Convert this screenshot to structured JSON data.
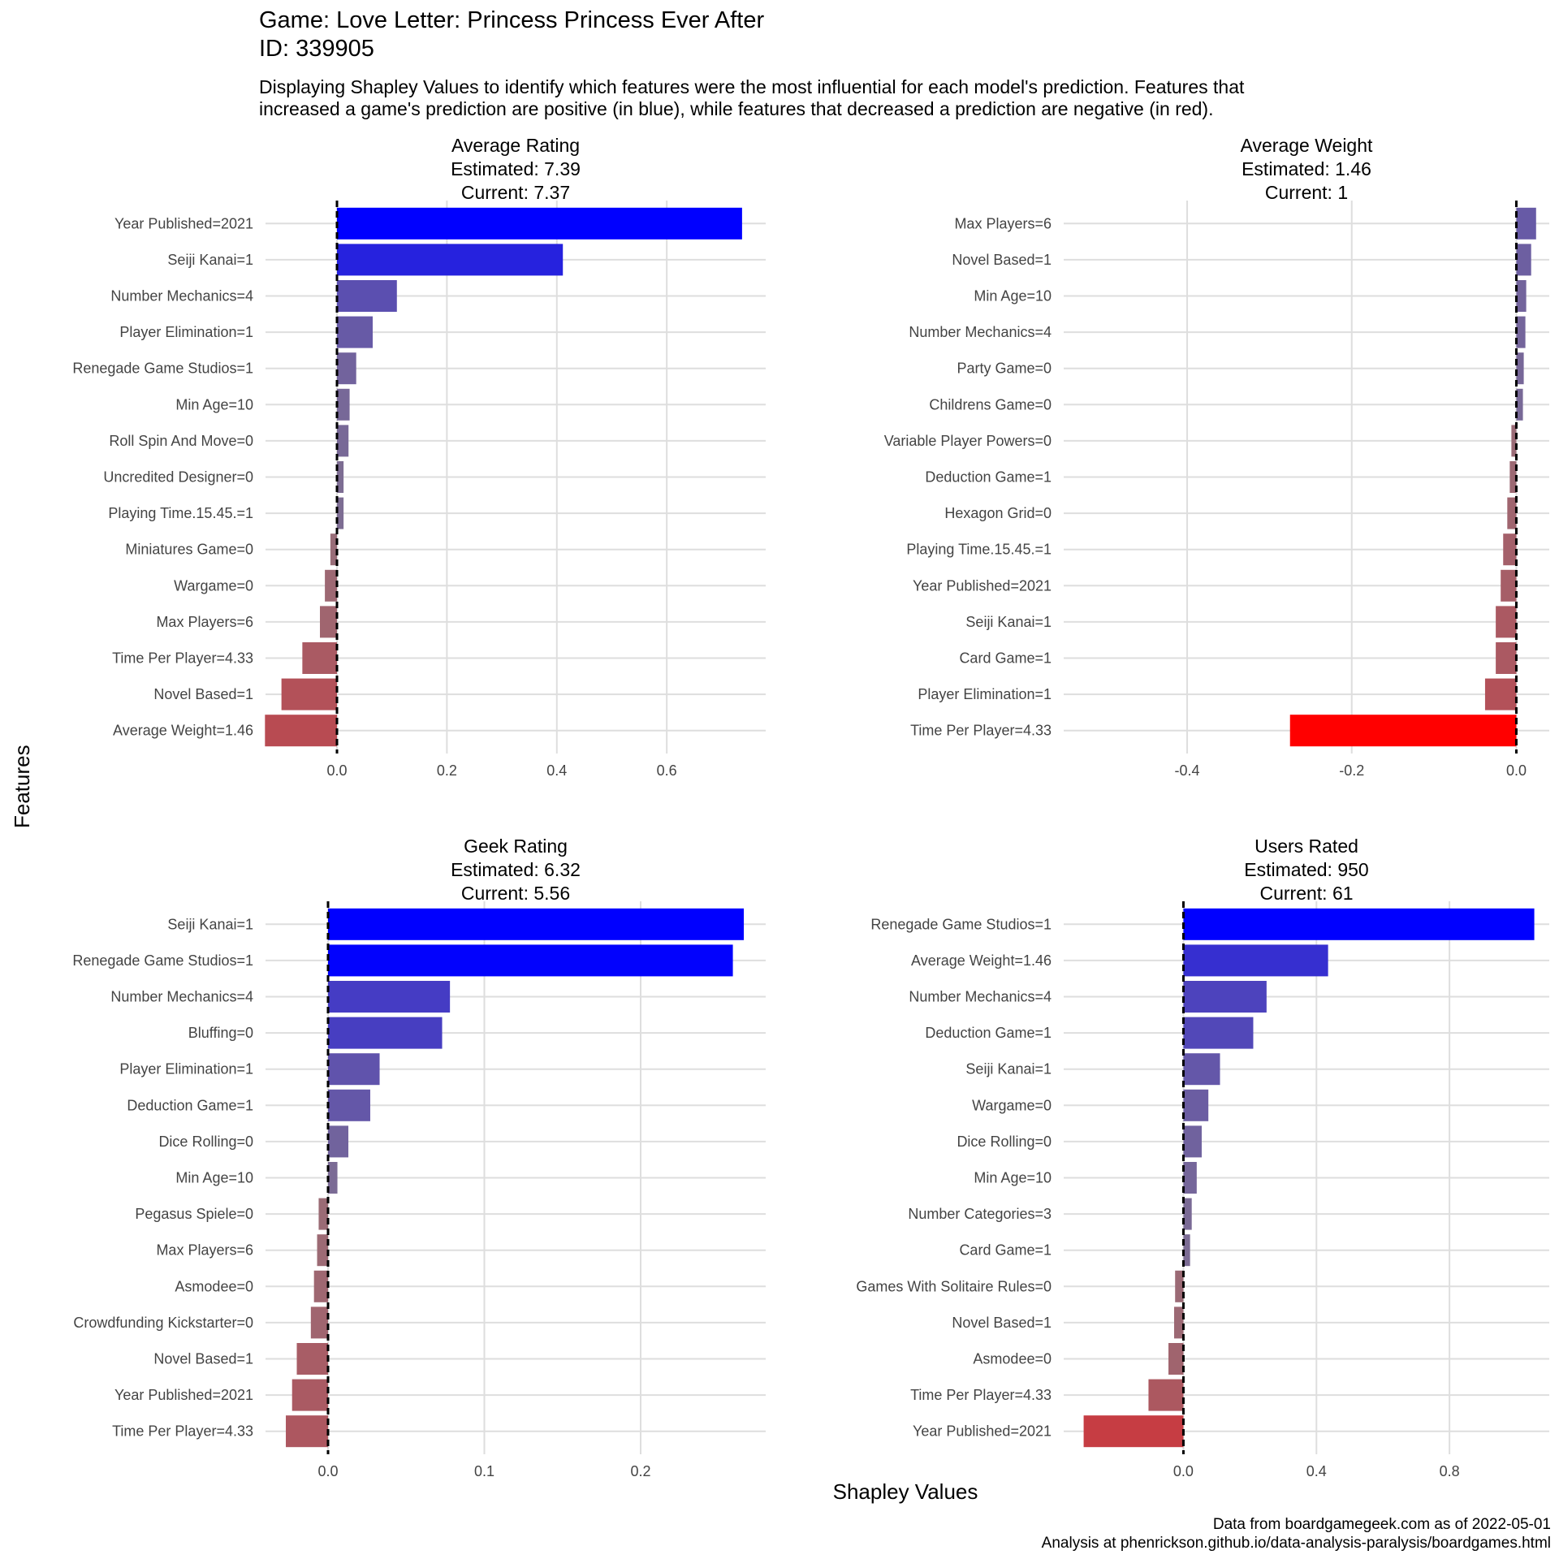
{
  "title": {
    "line1": "Game: Love Letter: Princess Princess Ever After",
    "line2": "ID: 339905"
  },
  "subtitle": {
    "line1": "Displaying Shapley Values to identify which features were the most influential for each model's prediction. Features that",
    "line2": "increased a game's prediction are positive (in blue), while features that decreased a prediction are negative (in red)."
  },
  "axis": {
    "ylabel": "Features",
    "xlabel": "Shapley Values"
  },
  "caption": {
    "line1": "Data from boardgamegeek.com as of 2022-05-01",
    "line2": "Analysis at phenrickson.github.io/data-analysis-paralysis/boardgames.html"
  },
  "colors": {
    "positive": "#0000ff",
    "negative": "#ff0000",
    "neutral": "#8c7a86",
    "grid": "#dedede",
    "zero_line": "#000000"
  },
  "chart_data": [
    {
      "type": "bar",
      "orientation": "horizontal",
      "title": [
        "Average Rating",
        "Estimated: 7.39",
        "Current: 7.37"
      ],
      "xlim": [
        -0.13,
        0.78
      ],
      "xticks": [
        0.0,
        0.2,
        0.4,
        0.6
      ],
      "xtick_labels": [
        "0.0",
        "0.2",
        "0.4",
        "0.6"
      ],
      "categories": [
        "Year Published=2021",
        "Seiji Kanai=1",
        "Number Mechanics=4",
        "Player Elimination=1",
        "Renegade Game Studios=1",
        "Min Age=10",
        "Roll Spin And Move=0",
        "Uncredited Designer=0",
        "Playing Time.15.45.=1",
        "Miniatures Game=0",
        "Wargame=0",
        "Max Players=6",
        "Time Per Player=4.33",
        "Novel Based=1",
        "Average Weight=1.46"
      ],
      "values": [
        0.737,
        0.411,
        0.109,
        0.065,
        0.035,
        0.023,
        0.021,
        0.012,
        0.012,
        -0.012,
        -0.022,
        -0.031,
        -0.063,
        -0.101,
        -0.131
      ]
    },
    {
      "type": "bar",
      "orientation": "horizontal",
      "title": [
        "Average Weight",
        "Estimated: 1.46",
        "Current: 1"
      ],
      "xlim": [
        -0.55,
        0.04
      ],
      "xticks": [
        -0.4,
        -0.2,
        0.0
      ],
      "xtick_labels": [
        "-0.4",
        "-0.2",
        "0.0"
      ],
      "categories": [
        "Max Players=6",
        "Novel Based=1",
        "Min Age=10",
        "Number Mechanics=4",
        "Party Game=0",
        "Childrens Game=0",
        "Variable Player Powers=0",
        "Deduction Game=1",
        "Hexagon Grid=0",
        "Playing Time.15.45.=1",
        "Year Published=2021",
        "Seiji Kanai=1",
        "Card Game=1",
        "Player Elimination=1",
        "Time Per Player=4.33"
      ],
      "values": [
        0.024,
        0.018,
        0.012,
        0.011,
        0.009,
        0.008,
        -0.006,
        -0.008,
        -0.011,
        -0.016,
        -0.019,
        -0.025,
        -0.025,
        -0.038,
        -0.275
      ]
    },
    {
      "type": "bar",
      "orientation": "horizontal",
      "title": [
        "Geek Rating",
        "Estimated: 6.32",
        "Current: 5.56"
      ],
      "xlim": [
        -0.04,
        0.28
      ],
      "xticks": [
        0.0,
        0.1,
        0.2
      ],
      "xtick_labels": [
        "0.0",
        "0.1",
        "0.2"
      ],
      "categories": [
        "Seiji Kanai=1",
        "Renegade Game Studios=1",
        "Number Mechanics=4",
        "Bluffing=0",
        "Player Elimination=1",
        "Deduction Game=1",
        "Dice Rolling=0",
        "Min Age=10",
        "Pegasus Spiele=0",
        "Max Players=6",
        "Asmodee=0",
        "Crowdfunding Kickstarter=0",
        "Novel Based=1",
        "Year Published=2021",
        "Time Per Player=4.33"
      ],
      "values": [
        0.266,
        0.259,
        0.078,
        0.073,
        0.033,
        0.027,
        0.013,
        0.006,
        -0.006,
        -0.007,
        -0.009,
        -0.011,
        -0.02,
        -0.023,
        -0.027
      ]
    },
    {
      "type": "bar",
      "orientation": "horizontal",
      "title": [
        "Users Rated",
        "Estimated: 950",
        "Current: 61"
      ],
      "xlim": [
        -0.36,
        1.1
      ],
      "xticks": [
        0.0,
        0.4,
        0.8
      ],
      "xtick_labels": [
        "0.0",
        "0.4",
        "0.8"
      ],
      "categories": [
        "Renegade Game Studios=1",
        "Average Weight=1.46",
        "Number Mechanics=4",
        "Deduction Game=1",
        "Seiji Kanai=1",
        "Wargame=0",
        "Dice Rolling=0",
        "Min Age=10",
        "Number Categories=3",
        "Card Game=1",
        "Games With Solitaire Rules=0",
        "Novel Based=1",
        "Asmodee=0",
        "Time Per Player=4.33",
        "Year Published=2021"
      ],
      "values": [
        1.055,
        0.435,
        0.25,
        0.21,
        0.11,
        0.075,
        0.055,
        0.04,
        0.025,
        0.02,
        -0.025,
        -0.028,
        -0.045,
        -0.105,
        -0.3
      ]
    }
  ]
}
